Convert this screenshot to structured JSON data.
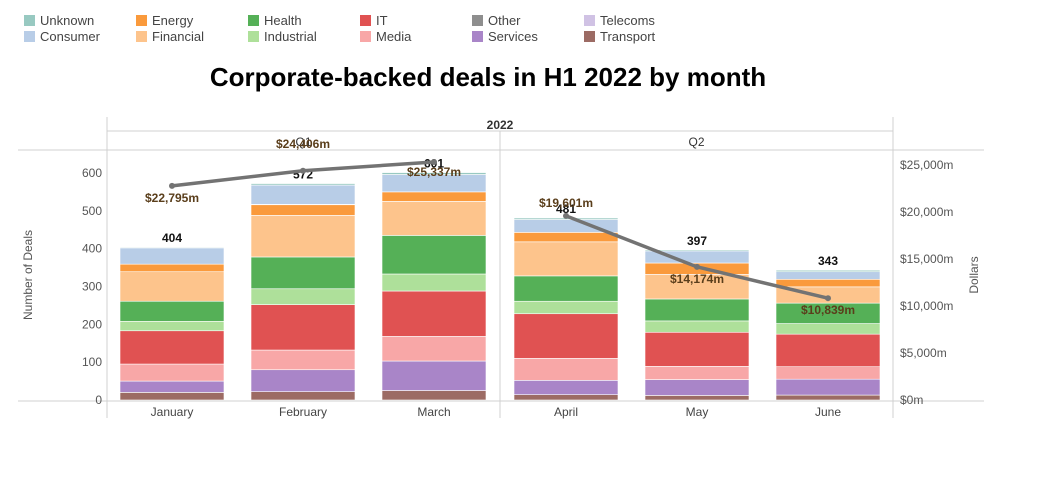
{
  "chart_data": {
    "type": "bar",
    "title": "Corporate-backed deals in H1 2022 by month",
    "year_label": "2022",
    "quarters": [
      {
        "label": "Q1",
        "months": [
          "January",
          "February",
          "March"
        ]
      },
      {
        "label": "Q2",
        "months": [
          "April",
          "May",
          "June"
        ]
      }
    ],
    "categories": [
      "January",
      "February",
      "March",
      "April",
      "May",
      "June"
    ],
    "ylabel": "Number of Deals",
    "ylabel_right": "Dollars",
    "ylim": [
      0,
      650
    ],
    "yticks": [
      "0",
      "100",
      "200",
      "300",
      "400",
      "500",
      "600"
    ],
    "ylim_right": [
      0,
      27500
    ],
    "yticks_right": [
      "$0m",
      "$5,000m",
      "$10,000m",
      "$15,000m",
      "$20,000m",
      "$25,000m"
    ],
    "legend": [
      "Unknown",
      "Energy",
      "Health",
      "IT",
      "Other",
      "Telecoms",
      "Consumer",
      "Financial",
      "Industrial",
      "Media",
      "Services",
      "Transport"
    ],
    "legend_position": "top",
    "series": [
      {
        "name": "Transport",
        "color": "#9c6b64",
        "values": [
          20,
          22,
          25,
          14,
          12,
          13
        ]
      },
      {
        "name": "Services",
        "color": "#a985c8",
        "values": [
          30,
          58,
          78,
          38,
          42,
          42
        ]
      },
      {
        "name": "Media",
        "color": "#f8a7a7",
        "values": [
          45,
          52,
          65,
          58,
          35,
          33
        ]
      },
      {
        "name": "IT",
        "color": "#e05252",
        "values": [
          88,
          120,
          120,
          118,
          90,
          86
        ]
      },
      {
        "name": "Industrial",
        "color": "#aee09a",
        "values": [
          25,
          42,
          45,
          33,
          30,
          28
        ]
      },
      {
        "name": "Health",
        "color": "#55b057",
        "values": [
          53,
          84,
          102,
          67,
          58,
          54
        ]
      },
      {
        "name": "Financial",
        "color": "#fdc48c",
        "values": [
          78,
          110,
          90,
          90,
          65,
          43
        ]
      },
      {
        "name": "Energy",
        "color": "#fa9a3c",
        "values": [
          20,
          28,
          25,
          25,
          30,
          20
        ]
      },
      {
        "name": "Other",
        "color": "#8e8e8e",
        "values": [
          0,
          1,
          0,
          0,
          0,
          0
        ]
      },
      {
        "name": "Telecoms",
        "color": "#d0c2e4",
        "values": [
          0,
          0,
          0,
          0,
          0,
          0
        ]
      },
      {
        "name": "Consumer",
        "color": "#b8cde7",
        "values": [
          43,
          51,
          46,
          34,
          32,
          20
        ]
      },
      {
        "name": "Unknown",
        "color": "#98c9c1",
        "values": [
          2,
          4,
          5,
          4,
          3,
          4
        ]
      }
    ],
    "totals": [
      404,
      572,
      601,
      481,
      397,
      343
    ],
    "total_labels": [
      "404",
      "572",
      "601",
      "481",
      "397",
      "343"
    ],
    "dollars": [
      22795,
      24406,
      25337,
      19601,
      14174,
      10839
    ],
    "dollar_labels": [
      "$22,795m",
      "$24,406m",
      "$25,337m",
      "$19,601m",
      "$14,174m",
      "$10,839m"
    ],
    "line_color": "#737373",
    "grid": false
  }
}
